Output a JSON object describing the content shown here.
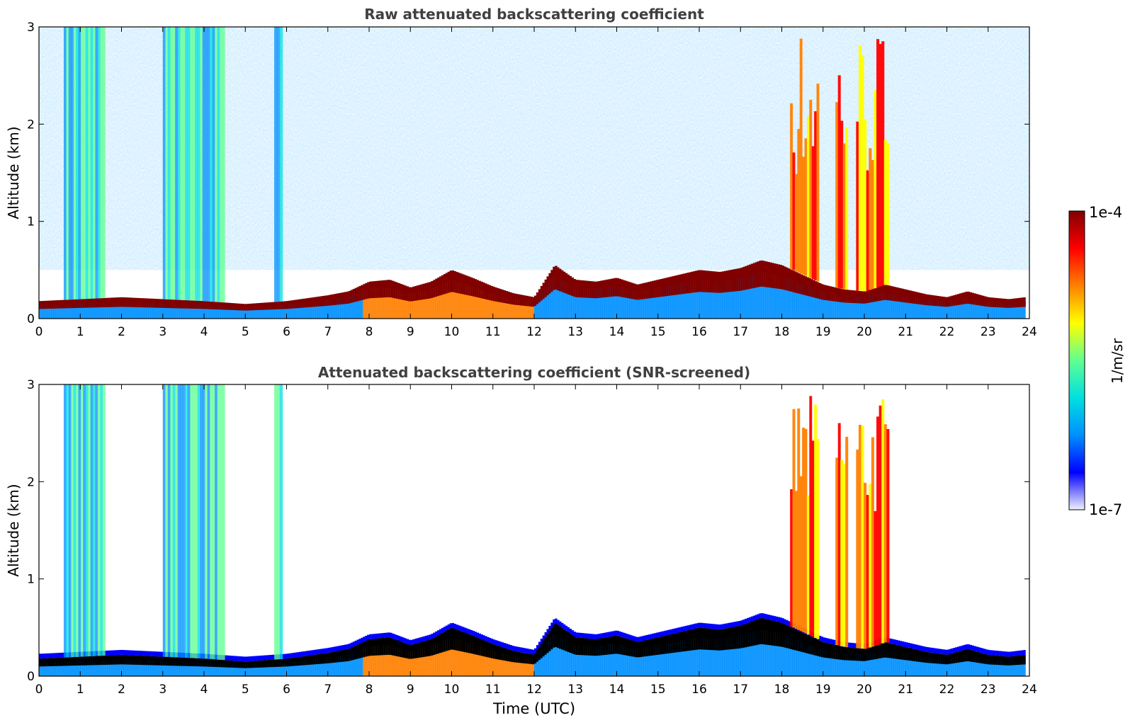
{
  "colors": {
    "axis": "#000000",
    "title": "#404040",
    "colormap": [
      "#f0f0ff",
      "#0000ff",
      "#0090ff",
      "#00e0e0",
      "#60ff90",
      "#ffff00",
      "#ff8000",
      "#ff0000",
      "#800000"
    ],
    "screened_peak": "#000000"
  },
  "colorbar": {
    "label": "1/m/sr",
    "max_label": "1e-4",
    "min_label": "1e-7",
    "range": [
      1e-07,
      0.0001
    ],
    "scale": "log"
  },
  "chart_data": [
    {
      "type": "heatmap",
      "title": "Raw attenuated backscattering coefficient",
      "xlabel": "",
      "ylabel": "Altitude (km)",
      "xlim": [
        0,
        24
      ],
      "ylim": [
        0,
        3
      ],
      "x_ticks": [
        "0",
        "1",
        "2",
        "3",
        "4",
        "5",
        "6",
        "7",
        "8",
        "9",
        "10",
        "11",
        "12",
        "13",
        "14",
        "15",
        "16",
        "17",
        "18",
        "19",
        "20",
        "21",
        "22",
        "23",
        "24"
      ],
      "y_ticks": [
        "0",
        "1",
        "2",
        "3"
      ],
      "boundary_layer_top_km": {
        "time_utc": [
          0,
          1,
          2,
          3,
          4,
          5,
          6,
          7,
          7.5,
          8,
          8.5,
          9,
          9.5,
          10,
          10.5,
          11,
          11.5,
          12,
          12.5,
          13,
          13.5,
          14,
          14.5,
          15,
          15.5,
          16,
          16.5,
          17,
          17.5,
          18,
          18.5,
          19,
          19.5,
          20,
          20.5,
          21,
          21.5,
          22,
          22.5,
          23,
          23.5,
          23.9
        ],
        "altitude_km": [
          0.18,
          0.2,
          0.22,
          0.2,
          0.18,
          0.15,
          0.18,
          0.24,
          0.28,
          0.38,
          0.4,
          0.32,
          0.38,
          0.5,
          0.42,
          0.33,
          0.26,
          0.22,
          0.55,
          0.4,
          0.38,
          0.42,
          0.35,
          0.4,
          0.45,
          0.5,
          0.48,
          0.52,
          0.6,
          0.55,
          0.45,
          0.35,
          0.3,
          0.28,
          0.35,
          0.3,
          0.25,
          0.22,
          0.28,
          0.22,
          0.2,
          0.22
        ]
      },
      "high_signal_columns_utc": [
        [
          0.6,
          1.6
        ],
        [
          3.0,
          4.5
        ],
        [
          5.7,
          5.9
        ],
        [
          18.2,
          18.9
        ],
        [
          19.3,
          19.6
        ],
        [
          19.8,
          20.6
        ]
      ]
    },
    {
      "type": "heatmap",
      "title": "Attenuated backscattering coefficient (SNR-screened)",
      "xlabel": "Time (UTC)",
      "ylabel": "Altitude (km)",
      "xlim": [
        0,
        24
      ],
      "ylim": [
        0,
        3
      ],
      "x_ticks": [
        "0",
        "1",
        "2",
        "3",
        "4",
        "5",
        "6",
        "7",
        "8",
        "9",
        "10",
        "11",
        "12",
        "13",
        "14",
        "15",
        "16",
        "17",
        "18",
        "19",
        "20",
        "21",
        "22",
        "23",
        "24"
      ],
      "y_ticks": [
        "0",
        "1",
        "2",
        "3"
      ]
    }
  ]
}
